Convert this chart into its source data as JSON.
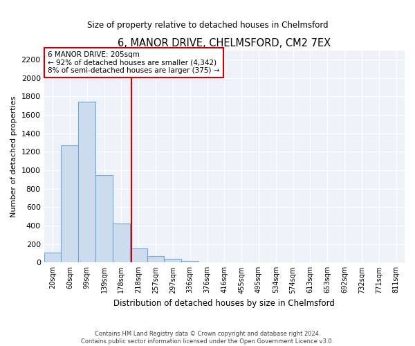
{
  "title": "6, MANOR DRIVE, CHELMSFORD, CM2 7EX",
  "subtitle": "Size of property relative to detached houses in Chelmsford",
  "xlabel": "Distribution of detached houses by size in Chelmsford",
  "ylabel": "Number of detached properties",
  "footer_line1": "Contains HM Land Registry data © Crown copyright and database right 2024.",
  "footer_line2": "Contains public sector information licensed under the Open Government Licence v3.0.",
  "annotation_title": "6 MANOR DRIVE: 205sqm",
  "annotation_line1": "← 92% of detached houses are smaller (4,342)",
  "annotation_line2": "8% of semi-detached houses are larger (375) →",
  "bar_color": "#ccdcee",
  "bar_edge_color": "#6aaad4",
  "vline_color": "#cc0000",
  "annotation_box_edgecolor": "#cc0000",
  "grid_color": "#cccccc",
  "background_color": "#ffffff",
  "plot_bg_color": "#eef2f8",
  "categories": [
    "20sqm",
    "60sqm",
    "99sqm",
    "139sqm",
    "178sqm",
    "218sqm",
    "257sqm",
    "297sqm",
    "336sqm",
    "376sqm",
    "416sqm",
    "455sqm",
    "495sqm",
    "534sqm",
    "574sqm",
    "613sqm",
    "653sqm",
    "692sqm",
    "732sqm",
    "771sqm",
    "811sqm"
  ],
  "values": [
    110,
    1270,
    1740,
    950,
    420,
    150,
    70,
    40,
    20,
    0,
    0,
    0,
    0,
    0,
    0,
    0,
    0,
    0,
    0,
    0,
    0
  ],
  "ylim": [
    0,
    2300
  ],
  "yticks": [
    0,
    200,
    400,
    600,
    800,
    1000,
    1200,
    1400,
    1600,
    1800,
    2000,
    2200
  ],
  "vline_pos": 4.6
}
